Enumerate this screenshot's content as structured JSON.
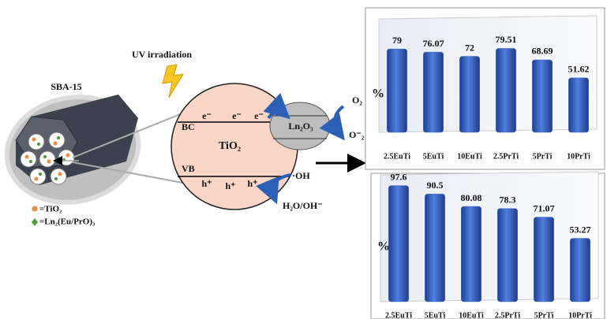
{
  "diagram": {
    "support_label": "SBA-15",
    "uv_label": "UV irradiation",
    "semiconductor": "TiO₂",
    "bc_label": "BC",
    "vb_label": "VB",
    "electrons": [
      "e⁻",
      "e⁻",
      "e⁻"
    ],
    "holes": [
      "h⁺",
      "h⁺",
      "h⁺"
    ],
    "cocatalyst": "Ln₂O₃",
    "oxygen": "O₂",
    "superoxide": "O⁻₂",
    "hydroxyl_radical": "·OH",
    "water": "H₂O/OH⁻",
    "legend": [
      "=TiO₂",
      "=Ln₂(Eu/PrO)₃"
    ]
  },
  "chart_data": [
    {
      "type": "bar",
      "y_label": "%",
      "categories": [
        "2.5EuTi",
        "5EuTi",
        "10EuTi",
        "2.5PrTi",
        "5PrTi",
        "10PrTi"
      ],
      "values": [
        79,
        76.07,
        72,
        79.51,
        68.69,
        51.62
      ],
      "color": "#3d68c8",
      "ylim": [
        0,
        100
      ]
    },
    {
      "type": "bar",
      "y_label": "%",
      "categories": [
        "2.5EuTi",
        "5EuTi",
        "10EuTi",
        "2.5PrTi",
        "5PrTi",
        "10PrTi"
      ],
      "values": [
        97.6,
        90.5,
        80.08,
        78.3,
        71.07,
        53.27
      ],
      "color": "#3d68c8",
      "ylim": [
        0,
        100
      ]
    }
  ]
}
